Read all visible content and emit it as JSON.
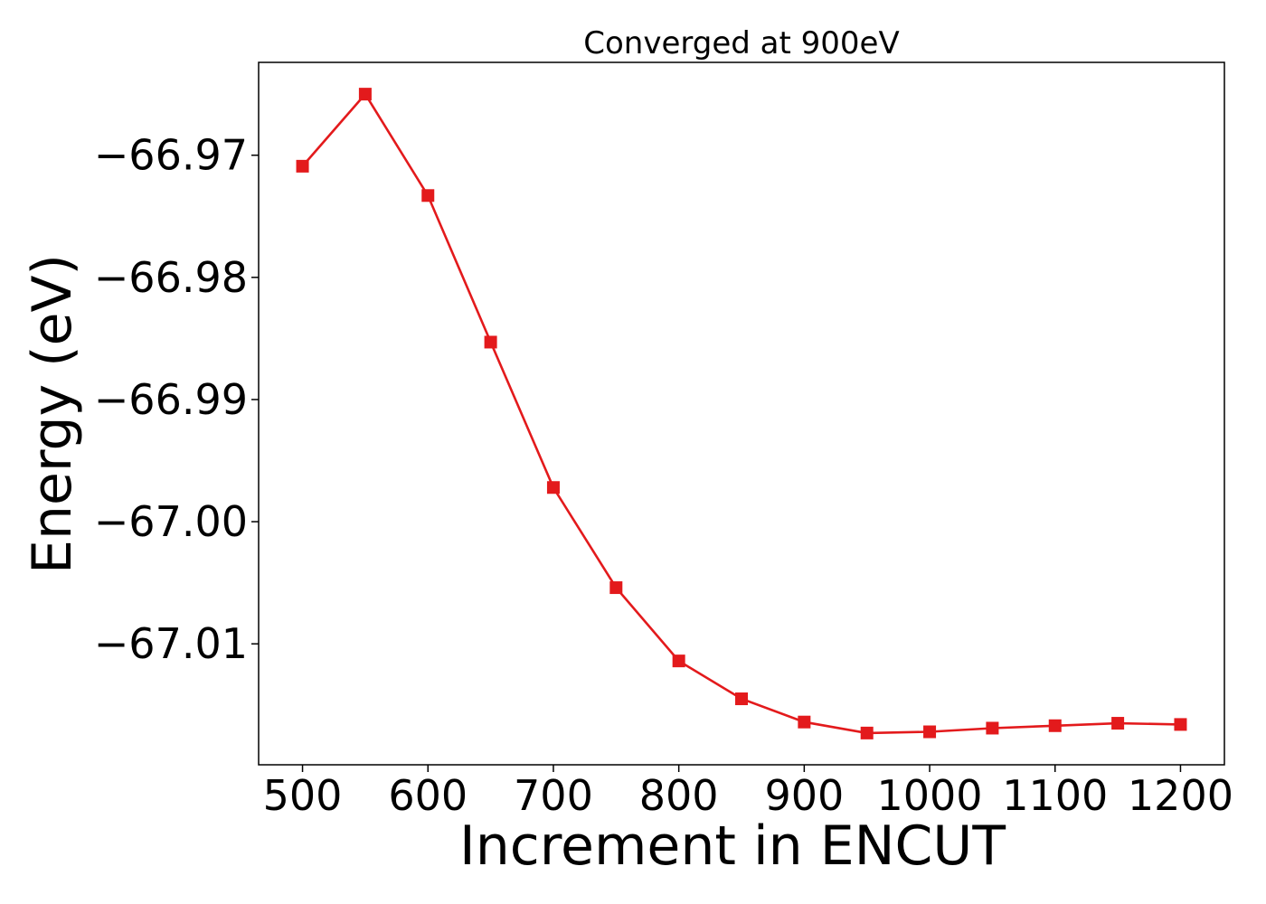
{
  "chart_data": {
    "type": "line",
    "title": "Converged at 900eV",
    "xlabel": "Increment in ENCUT",
    "ylabel": "Energy (eV)",
    "x": [
      500,
      550,
      600,
      650,
      700,
      750,
      800,
      850,
      900,
      950,
      1000,
      1050,
      1100,
      1150,
      1200
    ],
    "xlim": [
      465,
      1235
    ],
    "ylim": [
      -67.0199,
      -66.9624
    ],
    "x_ticks": [
      500,
      600,
      700,
      800,
      900,
      1000,
      1100,
      1200
    ],
    "x_tick_labels": [
      "500",
      "600",
      "700",
      "800",
      "900",
      "1000",
      "1100",
      "1200"
    ],
    "y_ticks": [
      -66.97,
      -66.98,
      -66.99,
      -67.0,
      -67.01
    ],
    "y_tick_labels": [
      "−66.97",
      "−66.98",
      "−66.99",
      "−67.00",
      "−67.01"
    ],
    "grid": false,
    "legend": "none",
    "series": [
      {
        "color": "#e31a1c",
        "marker": "square",
        "values": [
          -66.9709,
          -66.965,
          -66.9733,
          -66.9853,
          -66.9972,
          -67.0054,
          -67.0114,
          -67.0145,
          -67.0164,
          -67.0173,
          -67.0172,
          -67.0169,
          -67.0167,
          -67.0165,
          -67.0166
        ]
      }
    ]
  }
}
